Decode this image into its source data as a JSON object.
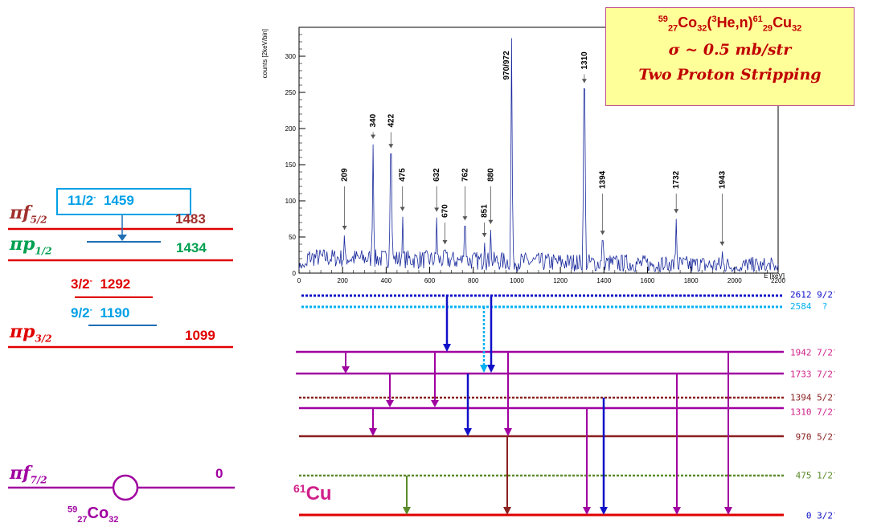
{
  "left_scheme": {
    "orbitals": [
      {
        "id": "f52",
        "main": "πf",
        "sub": "5/2",
        "color": "#a0302d",
        "energy": "1483"
      },
      {
        "id": "p12",
        "main": "πp",
        "sub": "1/2",
        "color": "#00a050",
        "energy": "1434"
      },
      {
        "id": "p32",
        "main": "πp",
        "sub": "3/2",
        "color": "#e00000",
        "energy": "1099"
      },
      {
        "id": "f72",
        "main": "πf",
        "sub": "7/2",
        "color": "#a000a0",
        "energy": "0"
      }
    ],
    "inner_levels": [
      {
        "spin": "11/2",
        "parity": "-",
        "energy": "1459",
        "color": "#1f6fb5"
      },
      {
        "spin": "3/2",
        "parity": "-",
        "energy": "1292",
        "color": "#e00000"
      },
      {
        "spin": "9/2",
        "parity": "-",
        "energy": "1190",
        "color": "#00a0e6"
      }
    ],
    "nucleus": {
      "mass": "59",
      "z": "27",
      "symbol": "Co",
      "n": "32"
    }
  },
  "info_box": {
    "reaction": {
      "a1": "59",
      "z1": "27",
      "sym1": "Co",
      "n1": "32",
      "proj": "(",
      "pa": "3",
      "pname": "He,n)",
      "a2": "61",
      "z2": "29",
      "sym2": "Cu",
      "n2": "32"
    },
    "sigma": "σ ~ 0.5 mb/str",
    "title": "Two Proton Stripping"
  },
  "chart_data": {
    "type": "line",
    "xlabel": "E [keV]",
    "ylabel": "counts [2keV/bin]",
    "xlim": [
      0,
      2200
    ],
    "ylim": [
      0,
      340
    ],
    "xticks": [
      0,
      200,
      400,
      600,
      800,
      1000,
      1200,
      1400,
      1600,
      1800,
      2000,
      2200
    ],
    "yticks": [
      0,
      50,
      100,
      150,
      200,
      250,
      300
    ],
    "series": [
      {
        "color": "#1a2a9c"
      }
    ],
    "peaks": [
      {
        "x": 209,
        "y": 52,
        "label": "209",
        "arrow_top": 120
      },
      {
        "x": 340,
        "y": 178,
        "label": "340",
        "arrow_top": 195
      },
      {
        "x": 422,
        "y": 165,
        "label": "422",
        "arrow_top": 195
      },
      {
        "x": 475,
        "y": 78,
        "label": "475",
        "arrow_top": 120
      },
      {
        "x": 632,
        "y": 77,
        "label": "632",
        "arrow_top": 120
      },
      {
        "x": 670,
        "y": 32,
        "label": "670",
        "arrow_top": 70
      },
      {
        "x": 762,
        "y": 65,
        "label": "762",
        "arrow_top": 120
      },
      {
        "x": 851,
        "y": 42,
        "label": "851",
        "arrow_top": 70
      },
      {
        "x": 880,
        "y": 60,
        "label": "880",
        "arrow_top": 120
      },
      {
        "x": 975,
        "y": 325,
        "label": "970/972",
        "arrow_top": null
      },
      {
        "x": 1310,
        "y": 255,
        "label": "1310",
        "arrow_top": 275
      },
      {
        "x": 1394,
        "y": 45,
        "label": "1394",
        "arrow_top": 110
      },
      {
        "x": 1732,
        "y": 75,
        "label": "1732",
        "arrow_top": 110
      },
      {
        "x": 1943,
        "y": 30,
        "label": "1943",
        "arrow_top": 110
      }
    ]
  },
  "level_scheme": {
    "nucleus": {
      "mass": "61",
      "symbol": "Cu"
    },
    "levels": [
      {
        "energy": "2612",
        "spin": "9/2",
        "parity": "-",
        "color": "#1010c8",
        "style": "dotted",
        "label_color": "#1010c8"
      },
      {
        "energy": "2584",
        "spin": "?",
        "parity": "",
        "color": "#00b0f0",
        "style": "dotted",
        "label_color": "#00b0f0"
      },
      {
        "energy": "1942",
        "spin": "7/2",
        "parity": "-",
        "color": "#a000a0",
        "style": "solid",
        "label_color": "#d0208a"
      },
      {
        "energy": "1733",
        "spin": "7/2",
        "parity": "-",
        "color": "#a000a0",
        "style": "solid",
        "label_color": "#d0208a"
      },
      {
        "energy": "1394",
        "spin": "5/2",
        "parity": "-",
        "color": "#8b2020",
        "style": "dotted",
        "label_color": "#8b2020"
      },
      {
        "energy": "1310",
        "spin": "7/2",
        "parity": "-",
        "color": "#a000a0",
        "style": "solid",
        "label_color": "#d0208a"
      },
      {
        "energy": "970",
        "spin": "5/2",
        "parity": "-",
        "color": "#8b2020",
        "style": "solid",
        "label_color": "#8b2020"
      },
      {
        "energy": "475",
        "spin": "1/2",
        "parity": "-",
        "color": "#5a8a2a",
        "style": "dotted",
        "label_color": "#5a8a2a"
      },
      {
        "energy": "0",
        "spin": "3/2",
        "parity": "-",
        "color": "#e00000",
        "style": "solid",
        "label_color": "#1010c8"
      }
    ]
  }
}
